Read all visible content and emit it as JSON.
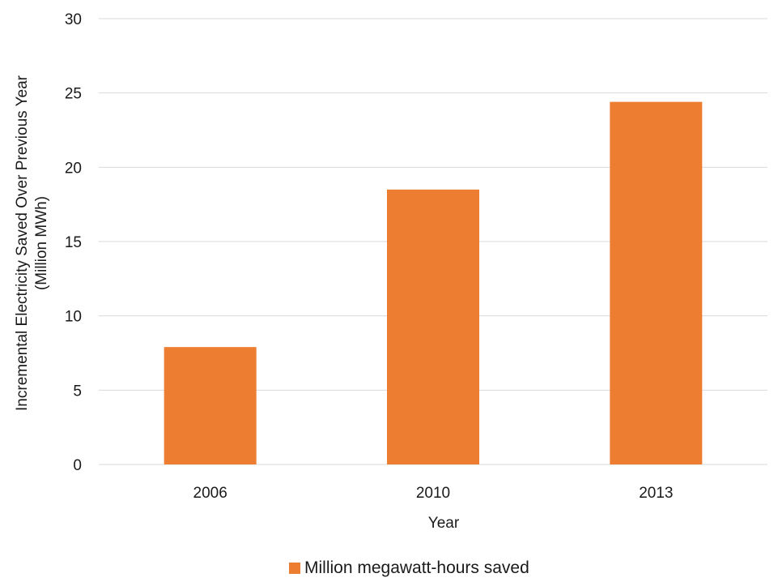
{
  "chart_data": {
    "type": "bar",
    "categories": [
      "2006",
      "2010",
      "2013"
    ],
    "series": [
      {
        "name": "Million megawatt-hours saved",
        "values": [
          7.9,
          18.5,
          24.4
        ],
        "color": "#ED7D31"
      }
    ],
    "xlabel": "Year",
    "ylabel": "Incremental Electricity Saved Over Previous Year",
    "ylabel_line2": "(Million MWh)",
    "ylim": [
      0,
      30
    ],
    "yticks": [
      "0",
      "5",
      "10",
      "15",
      "20",
      "25",
      "30"
    ],
    "grid": true,
    "legend_position": "bottom",
    "gridline_color": "#D9D9D9"
  }
}
